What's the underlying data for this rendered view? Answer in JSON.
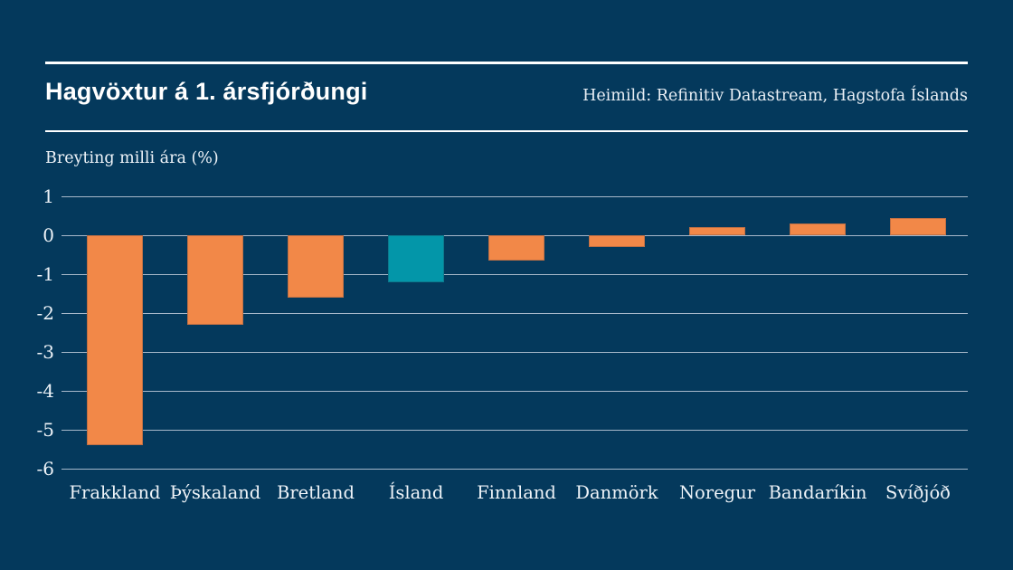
{
  "header": {
    "title": "Hagvöxtur á 1. ársfjórðungi",
    "source": "Heimild: Refinitiv Datastream, Hagstofa Íslands"
  },
  "colors": {
    "background": "#04395c",
    "bar_default": "#f28848",
    "bar_highlight": "#0396a9",
    "gridline": "#b9c7d6",
    "text": "#ffffff"
  },
  "chart_data": {
    "type": "bar",
    "title": "Hagvöxtur á 1. ársfjórðungi",
    "ylabel": "Breyting milli ára (%)",
    "xlabel": "",
    "categories": [
      "Frakkland",
      "Þýskaland",
      "Bretland",
      "Ísland",
      "Finnland",
      "Danmörk",
      "Noregur",
      "Bandaríkin",
      "Svíðjóð"
    ],
    "values": [
      -5.4,
      -2.3,
      -1.6,
      -1.2,
      -0.65,
      -0.3,
      0.2,
      0.3,
      0.45
    ],
    "highlight_index": 3,
    "yticks": [
      1,
      0,
      -1,
      -2,
      -3,
      -4,
      -5,
      -6
    ],
    "ylim": [
      -6,
      1
    ],
    "grid": true,
    "legend": false
  }
}
